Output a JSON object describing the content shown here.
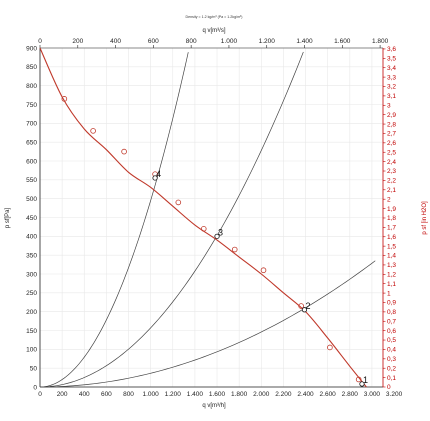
{
  "chart_data": {
    "type": "line",
    "header_note": "Density = 1.2 kg/m³  (Pa = 1.2kg/m³)",
    "top_axis": {
      "label": "q v[m³/s]",
      "range": [
        0,
        0.8613
      ],
      "ticks": [
        "0",
        "200",
        "400",
        "600",
        "800",
        "1.000",
        "1.200",
        "1.400",
        "1.600",
        "1.800"
      ],
      "tick_values_ref": [
        0,
        200,
        400,
        600,
        800,
        1000,
        1200,
        1400,
        1600,
        1800
      ]
    },
    "bottom_axis": {
      "label": "q v[m³/h]",
      "range": [
        0,
        3100
      ],
      "ticks": [
        "0",
        "200",
        "400",
        "600",
        "800",
        "1.000",
        "1.200",
        "1.400",
        "1.600",
        "1.800",
        "2.000",
        "2.200",
        "2.400",
        "2.600",
        "2.800",
        "3.000",
        "3.200"
      ],
      "tick_values": [
        0,
        200,
        400,
        600,
        800,
        1000,
        1200,
        1400,
        1600,
        1800,
        2000,
        2200,
        2400,
        2600,
        2800,
        3000,
        3200
      ]
    },
    "left_axis": {
      "label": "p sf[Pa]",
      "range": [
        0,
        900
      ],
      "ticks": [
        "0",
        "50",
        "100",
        "150",
        "200",
        "250",
        "300",
        "350",
        "400",
        "450",
        "500",
        "550",
        "600",
        "650",
        "700",
        "750",
        "800",
        "850",
        "900"
      ],
      "tick_values": [
        0,
        50,
        100,
        150,
        200,
        250,
        300,
        350,
        400,
        450,
        500,
        550,
        600,
        650,
        700,
        750,
        800,
        850,
        900
      ]
    },
    "right_axis": {
      "label": "p sf [in H2O]",
      "range": [
        0,
        3.61
      ],
      "ticks": [
        "0",
        "0,1",
        "0,2",
        "0,3",
        "0,4",
        "0,5",
        "0,6",
        "0,7",
        "0,8",
        "0,9",
        "1",
        "1,1",
        "1,2",
        "1,3",
        "1,4",
        "1,5",
        "1,6",
        "1,7",
        "1,8",
        "1,9",
        "2",
        "2,1",
        "2,2",
        "2,3",
        "2,4",
        "2,5",
        "2,6",
        "2,7",
        "2,8",
        "2,9",
        "3",
        "3,1",
        "3,2",
        "3,3",
        "3,4",
        "3,5",
        "3,6"
      ]
    },
    "series": [
      {
        "name": "p sf [Pa]",
        "color": "#c0392b",
        "points": [
          [
            0,
            900
          ],
          [
            200,
            770
          ],
          [
            400,
            685
          ],
          [
            600,
            630
          ],
          [
            800,
            570
          ],
          [
            1000,
            530
          ],
          [
            1200,
            480
          ],
          [
            1400,
            430
          ],
          [
            1600,
            390
          ],
          [
            1800,
            345
          ],
          [
            2000,
            300
          ],
          [
            2200,
            250
          ],
          [
            2400,
            200
          ],
          [
            2600,
            130
          ],
          [
            2800,
            55
          ],
          [
            2950,
            0
          ]
        ],
        "markers": [
          [
            220,
            765
          ],
          [
            480,
            680
          ],
          [
            760,
            625
          ],
          [
            1040,
            565
          ],
          [
            1250,
            490
          ],
          [
            1480,
            420
          ],
          [
            1760,
            365
          ],
          [
            2020,
            310
          ],
          [
            2360,
            215
          ],
          [
            2620,
            105
          ],
          [
            2880,
            20
          ]
        ]
      }
    ],
    "system_curves": [
      {
        "k": 0.000495,
        "x_max": 1340
      },
      {
        "k": 0.000157,
        "x_max": 2380
      },
      {
        "k": 3.65e-05,
        "x_max": 3030
      }
    ],
    "operating_points": [
      {
        "label": "4",
        "x": 1040,
        "y": 555
      },
      {
        "label": "3",
        "x": 1600,
        "y": 400
      },
      {
        "label": "2",
        "x": 2390,
        "y": 205
      },
      {
        "label": "1",
        "x": 2910,
        "y": 8
      }
    ],
    "colors": {
      "fan_curve": "#c0392b",
      "system_curve": "#444444",
      "grid": "#e8e8e8",
      "left_axis": "#222222",
      "right_axis": "#c00000"
    },
    "grid": true
  }
}
